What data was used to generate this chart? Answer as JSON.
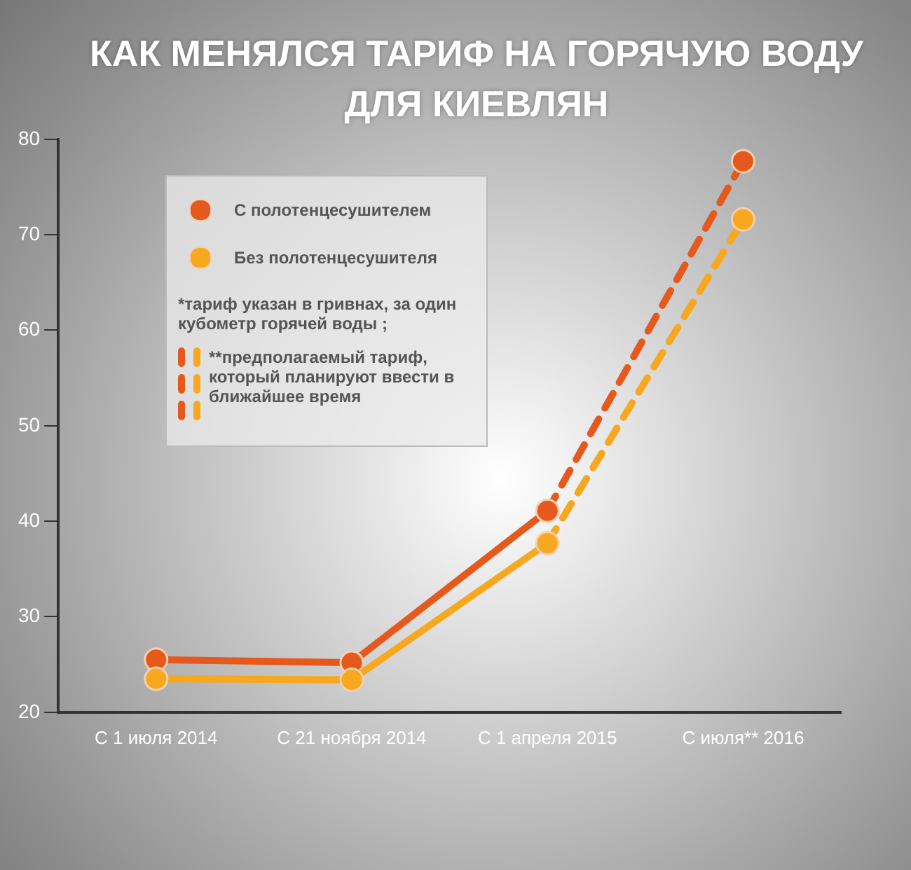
{
  "chart_data": {
    "type": "line",
    "title": "КАК МЕНЯЛСЯ ТАРИФ НА ГОРЯЧУЮ ВОДУ ДЛЯ КИЕВЛЯН",
    "categories": [
      "С 1 июля 2014",
      "С 21 ноября 2014",
      "С 1 апреля 2015",
      "С июля** 2016"
    ],
    "series": [
      {
        "name": "С  полотенцесушителем",
        "color": "#e55a1c",
        "values": [
          25.5,
          25.2,
          41.1,
          77.7
        ],
        "marker": "circle",
        "line_style": [
          "solid",
          "solid",
          "dashed"
        ]
      },
      {
        "name": "Без полотенцесушителя",
        "color": "#f7a81e",
        "values": [
          23.5,
          23.4,
          37.7,
          71.6
        ],
        "marker": "circle",
        "line_style": [
          "solid",
          "solid",
          "dashed"
        ]
      }
    ],
    "ylim": [
      20,
      80
    ],
    "yticks": [
      20,
      30,
      40,
      50,
      60,
      70,
      80
    ],
    "grid": false,
    "legend": "top left",
    "annotations": [
      "*тариф указан в гривнах, за один кубометр горячей воды ;",
      "**предполагаемый тариф, который планируют ввести в ближайшее время"
    ]
  }
}
